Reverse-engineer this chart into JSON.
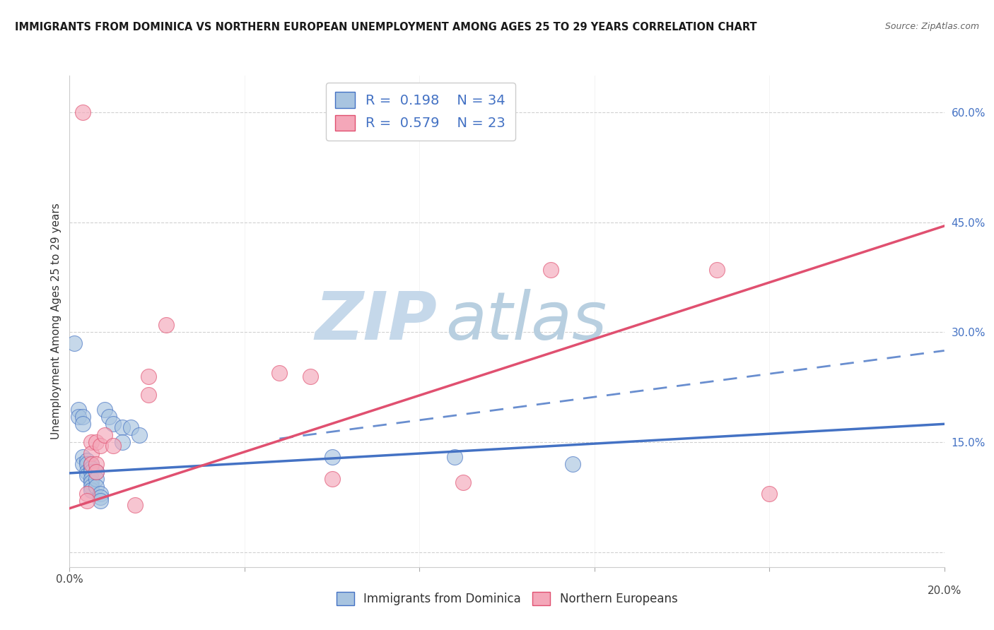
{
  "title": "IMMIGRANTS FROM DOMINICA VS NORTHERN EUROPEAN UNEMPLOYMENT AMONG AGES 25 TO 29 YEARS CORRELATION CHART",
  "source": "Source: ZipAtlas.com",
  "ylabel": "Unemployment Among Ages 25 to 29 years",
  "xlim": [
    0.0,
    0.2
  ],
  "ylim": [
    -0.02,
    0.65
  ],
  "xticks": [
    0.0,
    0.04,
    0.08,
    0.12,
    0.16,
    0.2
  ],
  "yticks": [
    0.0,
    0.15,
    0.3,
    0.45,
    0.6
  ],
  "r_blue": 0.198,
  "n_blue": 34,
  "r_pink": 0.579,
  "n_pink": 23,
  "blue_scatter": [
    [
      0.001,
      0.285
    ],
    [
      0.002,
      0.195
    ],
    [
      0.002,
      0.185
    ],
    [
      0.003,
      0.185
    ],
    [
      0.003,
      0.175
    ],
    [
      0.003,
      0.13
    ],
    [
      0.003,
      0.12
    ],
    [
      0.004,
      0.125
    ],
    [
      0.004,
      0.12
    ],
    [
      0.004,
      0.11
    ],
    [
      0.004,
      0.105
    ],
    [
      0.005,
      0.12
    ],
    [
      0.005,
      0.115
    ],
    [
      0.005,
      0.11
    ],
    [
      0.005,
      0.1
    ],
    [
      0.005,
      0.095
    ],
    [
      0.005,
      0.09
    ],
    [
      0.005,
      0.085
    ],
    [
      0.006,
      0.11
    ],
    [
      0.006,
      0.1
    ],
    [
      0.006,
      0.09
    ],
    [
      0.007,
      0.08
    ],
    [
      0.007,
      0.075
    ],
    [
      0.007,
      0.07
    ],
    [
      0.008,
      0.195
    ],
    [
      0.009,
      0.185
    ],
    [
      0.01,
      0.175
    ],
    [
      0.012,
      0.17
    ],
    [
      0.012,
      0.15
    ],
    [
      0.014,
      0.17
    ],
    [
      0.016,
      0.16
    ],
    [
      0.06,
      0.13
    ],
    [
      0.088,
      0.13
    ],
    [
      0.115,
      0.12
    ]
  ],
  "pink_scatter": [
    [
      0.003,
      0.6
    ],
    [
      0.004,
      0.08
    ],
    [
      0.004,
      0.07
    ],
    [
      0.005,
      0.15
    ],
    [
      0.005,
      0.135
    ],
    [
      0.005,
      0.12
    ],
    [
      0.006,
      0.15
    ],
    [
      0.006,
      0.12
    ],
    [
      0.006,
      0.11
    ],
    [
      0.007,
      0.145
    ],
    [
      0.008,
      0.16
    ],
    [
      0.01,
      0.145
    ],
    [
      0.015,
      0.065
    ],
    [
      0.018,
      0.24
    ],
    [
      0.018,
      0.215
    ],
    [
      0.022,
      0.31
    ],
    [
      0.048,
      0.245
    ],
    [
      0.055,
      0.24
    ],
    [
      0.06,
      0.1
    ],
    [
      0.09,
      0.095
    ],
    [
      0.11,
      0.385
    ],
    [
      0.148,
      0.385
    ],
    [
      0.16,
      0.08
    ]
  ],
  "blue_solid_line_x": [
    0.0,
    0.2
  ],
  "blue_solid_line_y": [
    0.108,
    0.175
  ],
  "blue_dashed_line_x": [
    0.048,
    0.2
  ],
  "blue_dashed_line_y": [
    0.155,
    0.275
  ],
  "pink_line_x": [
    0.0,
    0.2
  ],
  "pink_line_y": [
    0.06,
    0.445
  ],
  "blue_color": "#a8c4e0",
  "pink_color": "#f4a7b9",
  "blue_line_color": "#4472c4",
  "pink_line_color": "#e05070",
  "watermark_zip": "ZIP",
  "watermark_atlas": "atlas",
  "watermark_color_zip": "#c5d8ea",
  "watermark_color_atlas": "#b8cfe0"
}
